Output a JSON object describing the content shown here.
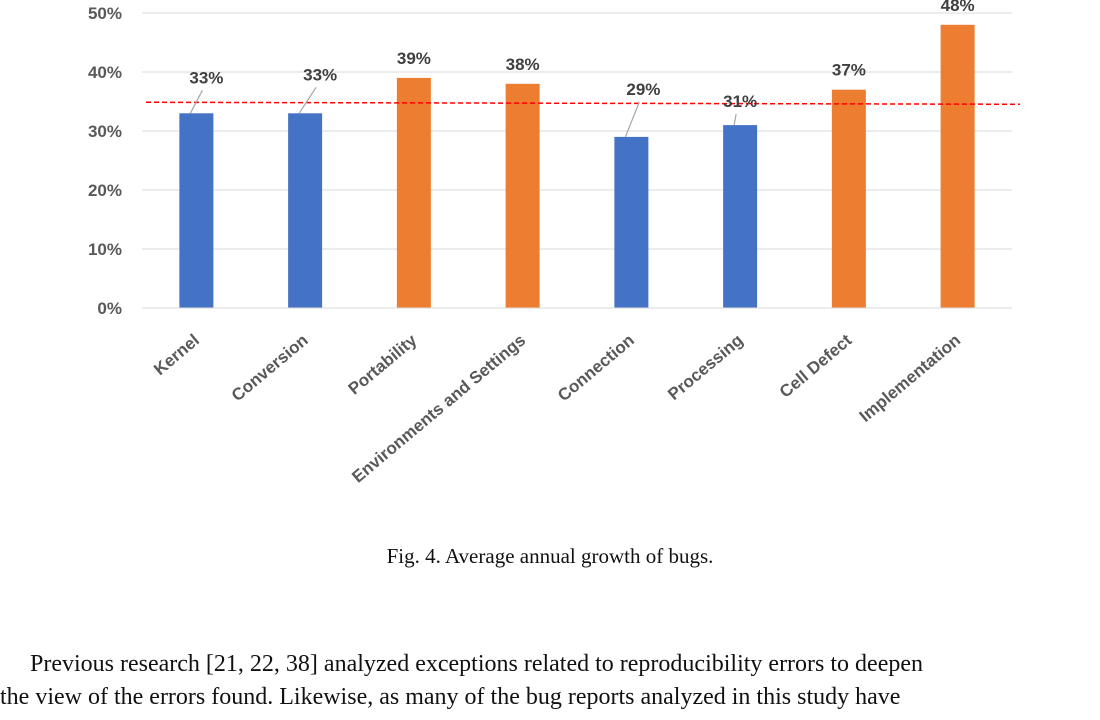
{
  "chart_data": {
    "type": "bar",
    "categories": [
      "Kernel",
      "Conversion",
      "Portability",
      "Environments and Settings",
      "Connection",
      "Processing",
      "Cell Defect",
      "Implementation"
    ],
    "values": [
      33,
      33,
      39,
      38,
      29,
      31,
      37,
      48
    ],
    "value_labels": [
      "33%",
      "33%",
      "39%",
      "38%",
      "29%",
      "31%",
      "37%",
      "48%"
    ],
    "bar_colors": [
      "#4472C4",
      "#4472C4",
      "#ED7D31",
      "#ED7D31",
      "#4472C4",
      "#4472C4",
      "#ED7D31",
      "#ED7D31"
    ],
    "y_ticks": [
      "0%",
      "10%",
      "20%",
      "30%",
      "40%",
      "50%"
    ],
    "ylim": [
      0,
      50
    ],
    "reference_line": {
      "value": 34.7,
      "color": "#FF0000",
      "style": "dashed"
    },
    "grid": true,
    "legend": "none"
  },
  "caption": "Fig. 4.  Average annual growth of bugs.",
  "body_lines": [
    "Previous research [21, 22, 38] analyzed exceptions related to reproducibility errors to deepen",
    "the view of the errors found. Likewise, as many of the bug reports analyzed in this study have"
  ]
}
